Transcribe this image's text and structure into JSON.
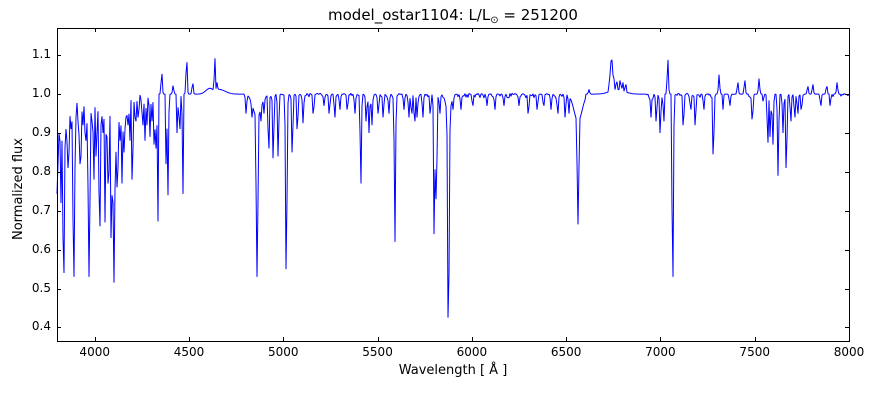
{
  "chart_data": {
    "type": "line",
    "title": "model_ostar1104: L/L⊙ = 251200",
    "title_parts": {
      "prefix": "model_ostar1104: L/L",
      "sun_symbol": "⊙",
      "suffix": " = 251200"
    },
    "xlabel": "Wavelength [ Å ]",
    "ylabel": "Normalized flux",
    "xlim": [
      3800,
      8000
    ],
    "ylim": [
      0.365,
      1.17
    ],
    "xticks": [
      "4000",
      "4500",
      "5000",
      "5500",
      "6000",
      "6500",
      "7000",
      "7500",
      "8000"
    ],
    "xtick_values": [
      4000,
      4500,
      5000,
      5500,
      6000,
      6500,
      7000,
      7500,
      8000
    ],
    "yticks": [
      "0.4",
      "0.5",
      "0.6",
      "0.7",
      "0.8",
      "0.9",
      "1.0",
      "1.1"
    ],
    "ytick_values": [
      0.4,
      0.5,
      0.6,
      0.7,
      0.8,
      0.9,
      1.0,
      1.1
    ],
    "grid": false,
    "legend": "none",
    "line_color": "#0000ff",
    "frame_color": "#000000",
    "background": "#ffffff",
    "continuum_flux": 1.0,
    "absorption_lines": [
      [
        3797,
        0.6
      ],
      [
        3805,
        0.82
      ],
      [
        3813,
        0.9
      ],
      [
        3820,
        0.72
      ],
      [
        3829,
        0.88
      ],
      [
        3835,
        0.54,
        0.9
      ],
      [
        3835,
        0.96,
        3
      ],
      [
        3847,
        0.91
      ],
      [
        3856,
        0.81
      ],
      [
        3863,
        0.85
      ],
      [
        3872,
        0.91
      ],
      [
        3880,
        0.93
      ],
      [
        3889,
        0.53,
        0.9
      ],
      [
        3889,
        0.96,
        3
      ],
      [
        3900,
        0.94
      ],
      [
        3912,
        0.93
      ],
      [
        3920,
        0.82
      ],
      [
        3927,
        0.84
      ],
      [
        3936,
        0.92
      ],
      [
        3948,
        0.9
      ],
      [
        3956,
        0.88
      ],
      [
        3964,
        0.85
      ],
      [
        3970,
        0.53,
        0.9
      ],
      [
        3970,
        0.95,
        3
      ],
      [
        3983,
        0.93
      ],
      [
        3995,
        0.78
      ],
      [
        4009,
        0.84
      ],
      [
        4026,
        0.66,
        0.8
      ],
      [
        4026,
        0.96,
        2
      ],
      [
        4035,
        0.92
      ],
      [
        4042,
        0.9
      ],
      [
        4055,
        0.67
      ],
      [
        4069,
        0.77
      ],
      [
        4076,
        0.8
      ],
      [
        4089,
        0.63
      ],
      [
        4097,
        0.73
      ],
      [
        4102,
        0.515,
        0.9
      ],
      [
        4102,
        0.94,
        3.5
      ],
      [
        4110,
        0.88
      ],
      [
        4116,
        0.76
      ],
      [
        4121,
        0.81
      ],
      [
        4132,
        0.88
      ],
      [
        4144,
        0.77
      ],
      [
        4153,
        0.85
      ],
      [
        4163,
        0.91
      ],
      [
        4174,
        0.92
      ],
      [
        4186,
        0.88
      ],
      [
        4200,
        0.78
      ],
      [
        4213,
        0.94
      ],
      [
        4219,
        0.93
      ],
      [
        4232,
        0.94
      ],
      [
        4254,
        0.92
      ],
      [
        4267,
        0.88
      ],
      [
        4276,
        0.92
      ],
      [
        4293,
        0.89
      ],
      [
        4303,
        0.93
      ],
      [
        4317,
        0.87
      ],
      [
        4323,
        0.86
      ],
      [
        4332,
        0.92
      ],
      [
        4340,
        0.5,
        0.9
      ],
      [
        4340,
        0.94,
        4
      ],
      [
        4351,
        0.85
      ],
      [
        4366,
        0.88
      ],
      [
        4379,
        0.82
      ],
      [
        4388,
        0.74
      ],
      [
        4400,
        0.93
      ],
      [
        4414,
        0.62
      ],
      [
        4426,
        0.91
      ],
      [
        4437,
        0.9
      ],
      [
        4450,
        0.91
      ],
      [
        4471,
        0.68,
        0.8
      ],
      [
        4481,
        0.92
      ],
      [
        4511,
        0.89
      ],
      [
        4530,
        0.93
      ],
      [
        4542,
        0.81
      ],
      [
        4553,
        0.78
      ],
      [
        4568,
        0.82
      ],
      [
        4575,
        0.87
      ],
      [
        4591,
        0.9
      ],
      [
        4604,
        0.89
      ],
      [
        4613,
        0.91
      ],
      [
        4621,
        0.9
      ],
      [
        4631,
        0.87
      ],
      [
        4647,
        0.81
      ],
      [
        4654,
        0.85
      ],
      [
        4662,
        0.83
      ],
      [
        4676,
        0.88
      ],
      [
        4686,
        0.79
      ],
      [
        4700,
        0.94
      ],
      [
        4713,
        0.87
      ],
      [
        4728,
        0.95
      ],
      [
        4751,
        0.93
      ],
      [
        4759,
        0.82
      ],
      [
        4772,
        0.94
      ],
      [
        4803,
        0.95
      ],
      [
        4833,
        0.94
      ],
      [
        4861,
        0.53,
        0.9
      ],
      [
        4861,
        0.94,
        4
      ],
      [
        4881,
        0.93
      ],
      [
        4898,
        0.95
      ],
      [
        4922,
        0.86
      ],
      [
        4947,
        0.835
      ],
      [
        4973,
        0.84
      ],
      [
        5016,
        0.55,
        0.7
      ],
      [
        5048,
        0.85
      ],
      [
        5075,
        0.91
      ],
      [
        5105,
        0.925
      ],
      [
        5160,
        0.95
      ],
      [
        5216,
        0.97
      ],
      [
        5244,
        0.95
      ],
      [
        5273,
        0.94
      ],
      [
        5300,
        0.96
      ],
      [
        5340,
        0.96
      ],
      [
        5380,
        0.95
      ],
      [
        5411,
        0.77
      ],
      [
        5440,
        0.93
      ],
      [
        5455,
        0.9
      ],
      [
        5470,
        0.92
      ],
      [
        5504,
        0.95
      ],
      [
        5530,
        0.94
      ],
      [
        5560,
        0.95
      ],
      [
        5592,
        0.62
      ],
      [
        5640,
        0.96
      ],
      [
        5666,
        0.94
      ],
      [
        5680,
        0.95
      ],
      [
        5696,
        0.93
      ],
      [
        5710,
        0.94
      ],
      [
        5740,
        0.94
      ],
      [
        5780,
        0.95
      ],
      [
        5801,
        0.64
      ],
      [
        5812,
        0.73
      ],
      [
        5830,
        0.95
      ],
      [
        5876,
        0.425,
        0.8
      ],
      [
        5876,
        0.95,
        2.5
      ],
      [
        5900,
        0.96
      ],
      [
        5942,
        0.96
      ],
      [
        6004,
        0.97
      ],
      [
        6080,
        0.97
      ],
      [
        6122,
        0.96
      ],
      [
        6170,
        0.97
      ],
      [
        6250,
        0.97
      ],
      [
        6300,
        0.95
      ],
      [
        6347,
        0.96
      ],
      [
        6380,
        0.97
      ],
      [
        6420,
        0.96
      ],
      [
        6455,
        0.95
      ],
      [
        6495,
        0.94
      ],
      [
        6515,
        0.95
      ],
      [
        6563,
        0.665,
        0.9
      ],
      [
        6563,
        0.93,
        4
      ],
      [
        6655,
        0.94
      ],
      [
        6678,
        0.665,
        0.7
      ],
      [
        6700,
        0.93
      ],
      [
        6758,
        0.965
      ],
      [
        6878,
        0.95
      ],
      [
        6890,
        0.94
      ],
      [
        6920,
        0.96
      ],
      [
        6950,
        0.94
      ],
      [
        6978,
        0.93
      ],
      [
        6999,
        0.9
      ],
      [
        7018,
        0.93
      ],
      [
        7065,
        0.53,
        0.7
      ],
      [
        7122,
        0.92
      ],
      [
        7160,
        0.96
      ],
      [
        7185,
        0.92
      ],
      [
        7230,
        0.96
      ],
      [
        7281,
        0.845
      ],
      [
        7330,
        0.96
      ],
      [
        7368,
        0.97
      ],
      [
        7420,
        0.96
      ],
      [
        7442,
        0.96
      ],
      [
        7488,
        0.935
      ],
      [
        7540,
        0.96
      ],
      [
        7569,
        0.875
      ],
      [
        7582,
        0.89
      ],
      [
        7596,
        0.87
      ],
      [
        7624,
        0.79
      ],
      [
        7650,
        0.9
      ],
      [
        7668,
        0.81
      ],
      [
        7691,
        0.93
      ],
      [
        7712,
        0.94
      ],
      [
        7728,
        0.95
      ],
      [
        7748,
        0.96
      ],
      [
        7772,
        0.94
      ],
      [
        7808,
        0.96
      ],
      [
        7850,
        0.97
      ],
      [
        7900,
        0.97
      ],
      [
        7950,
        0.975
      ]
    ],
    "emission_features": [
      [
        4355,
        1.052
      ],
      [
        4416,
        1.022
      ],
      [
        4487,
        1.082
      ],
      [
        4519,
        1.027
      ],
      [
        4611,
        1.015,
        4
      ],
      [
        4637,
        1.092
      ],
      [
        4650,
        1.03
      ],
      [
        4660,
        1.012,
        6
      ],
      [
        6621,
        1.012
      ],
      [
        6731,
        1.05
      ],
      [
        6739,
        1.085
      ],
      [
        6745,
        1.088
      ],
      [
        6752,
        1.04
      ],
      [
        6764,
        1.025
      ],
      [
        6770,
        1.032
      ],
      [
        6770,
        1.012,
        7
      ],
      [
        6788,
        1.035
      ],
      [
        6800,
        1.03
      ],
      [
        6815,
        1.025
      ],
      [
        7039,
        1.088
      ],
      [
        7311,
        1.05
      ],
      [
        7410,
        1.03
      ],
      [
        7447,
        1.035
      ],
      [
        7523,
        1.04
      ],
      [
        7781,
        1.02
      ],
      [
        7808,
        1.025
      ],
      [
        7881,
        1.02
      ],
      [
        7937,
        1.03
      ]
    ],
    "noise_bands": [
      [
        3800,
        4700,
        0.03
      ],
      [
        4700,
        5350,
        0.007
      ],
      [
        5350,
        5900,
        0.009
      ],
      [
        5900,
        6530,
        0.01
      ],
      [
        6530,
        7000,
        0.012
      ],
      [
        7000,
        7560,
        0.009
      ],
      [
        7560,
        8000,
        0.006
      ]
    ]
  }
}
